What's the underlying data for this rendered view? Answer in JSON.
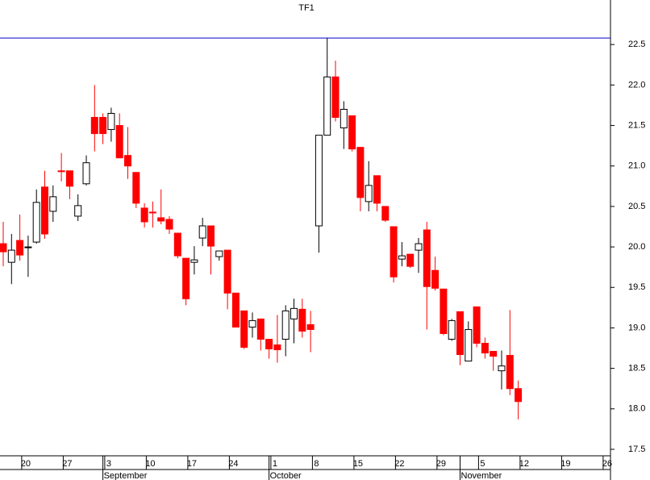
{
  "chart_data": {
    "type": "candlestick",
    "title": "TF1",
    "categories": [
      null,
      null,
      null,
      "20",
      null,
      null,
      null,
      null,
      "27",
      null,
      null,
      null,
      null,
      "3",
      null,
      null,
      null,
      null,
      "10",
      null,
      null,
      null,
      null,
      "17",
      null,
      null,
      null,
      null,
      "24",
      null,
      null,
      null,
      null,
      "1",
      null,
      null,
      null,
      null,
      "8",
      null,
      null,
      null,
      null,
      "15",
      null,
      null,
      null,
      null,
      "22",
      null,
      null,
      null,
      null,
      "29",
      null,
      null,
      null,
      null,
      "5",
      null,
      null,
      null,
      null,
      "12",
      null,
      null,
      null,
      null,
      "19",
      null,
      null,
      null,
      null,
      "26"
    ],
    "month_categories": [
      null,
      null,
      null,
      null,
      null,
      null,
      null,
      null,
      null,
      null,
      null,
      null,
      "September",
      null,
      null,
      null,
      null,
      null,
      null,
      null,
      null,
      null,
      null,
      null,
      null,
      null,
      null,
      null,
      null,
      null,
      null,
      null,
      "October",
      null,
      null,
      null,
      null,
      null,
      null,
      null,
      null,
      null,
      null,
      null,
      null,
      null,
      null,
      null,
      null,
      null,
      null,
      null,
      null,
      null,
      null,
      "November",
      null,
      null,
      null,
      null,
      null,
      null,
      null,
      null,
      null,
      null,
      null,
      null,
      null,
      null,
      null,
      null,
      null,
      null
    ],
    "open": [
      20.04,
      19.81,
      20.08,
      20.0,
      20.06,
      20.74,
      20.44,
      20.94,
      20.94,
      20.38,
      20.78,
      21.6,
      21.6,
      21.45,
      21.5,
      21.13,
      20.92,
      20.48,
      20.43,
      20.36,
      20.34,
      20.17,
      19.86,
      19.81,
      20.11,
      20.26,
      19.88,
      19.96,
      19.43,
      19.21,
      19.01,
      19.11,
      18.86,
      18.79,
      18.86,
      19.11,
      19.23,
      19.04,
      20.26,
      21.38,
      22.1,
      21.47,
      21.62,
      21.23,
      20.56,
      20.88,
      20.5,
      20.25,
      19.85,
      19.91,
      19.96,
      20.21,
      19.71,
      19.48,
      18.86,
      19.2,
      18.59,
      19.26,
      18.81,
      18.71,
      18.47,
      18.66,
      18.25,
      null,
      null,
      null,
      null,
      null,
      null,
      null,
      null,
      null,
      null,
      null
    ],
    "high": [
      20.31,
      20.16,
      20.4,
      20.14,
      20.71,
      20.94,
      20.76,
      21.16,
      20.94,
      20.65,
      21.13,
      22.0,
      21.65,
      21.72,
      21.65,
      21.48,
      20.92,
      20.54,
      20.56,
      20.71,
      20.38,
      20.17,
      19.86,
      20.01,
      20.36,
      20.26,
      19.95,
      19.96,
      19.43,
      19.21,
      19.19,
      19.11,
      18.86,
      19.16,
      19.28,
      19.36,
      19.36,
      19.21,
      21.38,
      22.58,
      22.3,
      21.8,
      21.62,
      21.23,
      21.06,
      20.88,
      20.5,
      20.25,
      20.06,
      19.91,
      20.11,
      20.31,
      19.88,
      19.48,
      19.11,
      19.2,
      19.08,
      19.26,
      18.88,
      18.71,
      18.72,
      19.22,
      18.35,
      null,
      null,
      null,
      null,
      null,
      null,
      null,
      null,
      null,
      null,
      null
    ],
    "low": [
      19.76,
      19.54,
      19.83,
      19.63,
      20.04,
      20.1,
      20.31,
      20.81,
      20.59,
      20.32,
      20.76,
      21.18,
      21.27,
      21.3,
      21.1,
      20.84,
      20.48,
      20.24,
      20.24,
      20.28,
      20.16,
      19.86,
      19.28,
      19.66,
      20.01,
      19.66,
      19.83,
      19.23,
      19.01,
      18.74,
      18.88,
      18.72,
      18.62,
      18.57,
      18.65,
      18.81,
      18.88,
      18.7,
      19.93,
      21.38,
      21.55,
      21.21,
      21.18,
      20.44,
      20.44,
      20.44,
      20.31,
      19.56,
      19.76,
      19.74,
      19.68,
      18.98,
      19.46,
      18.91,
      18.84,
      18.54,
      18.59,
      18.76,
      18.62,
      18.47,
      18.24,
      18.17,
      17.87,
      null,
      null,
      null,
      null,
      null,
      null,
      null,
      null,
      null,
      null,
      null
    ],
    "close": [
      19.94,
      19.96,
      19.9,
      20.0,
      20.55,
      20.16,
      20.62,
      20.93,
      20.75,
      20.51,
      21.04,
      21.4,
      21.4,
      21.65,
      21.1,
      21.0,
      20.54,
      20.31,
      20.42,
      20.32,
      20.22,
      19.89,
      19.36,
      19.84,
      20.26,
      20.01,
      19.95,
      19.43,
      19.01,
      18.76,
      19.09,
      18.86,
      18.74,
      18.73,
      19.21,
      19.24,
      18.96,
      18.98,
      21.38,
      22.1,
      21.6,
      21.7,
      21.21,
      20.61,
      20.76,
      20.54,
      20.33,
      19.63,
      19.89,
      19.76,
      20.04,
      19.51,
      19.49,
      18.93,
      19.09,
      18.67,
      18.98,
      18.81,
      18.69,
      18.65,
      18.53,
      18.25,
      18.09,
      null,
      null,
      null,
      null,
      null,
      null,
      null,
      null,
      null,
      null,
      null
    ],
    "up_color": "#ffffff",
    "down_color": "#ff0000",
    "hline": 22.58,
    "hline_color": "#0000cc",
    "ylim": [
      17.42,
      23.05
    ],
    "yticks": [
      17.5,
      {
        "value": 18,
        "label": "18.0"
      },
      18.5,
      {
        "value": 19,
        "label": "19.0"
      },
      19.5,
      {
        "value": 20,
        "label": "20.0"
      },
      20.5,
      {
        "value": 21,
        "label": "21.0"
      },
      21.5,
      {
        "value": 22,
        "label": "22.0"
      },
      22.5
    ]
  }
}
